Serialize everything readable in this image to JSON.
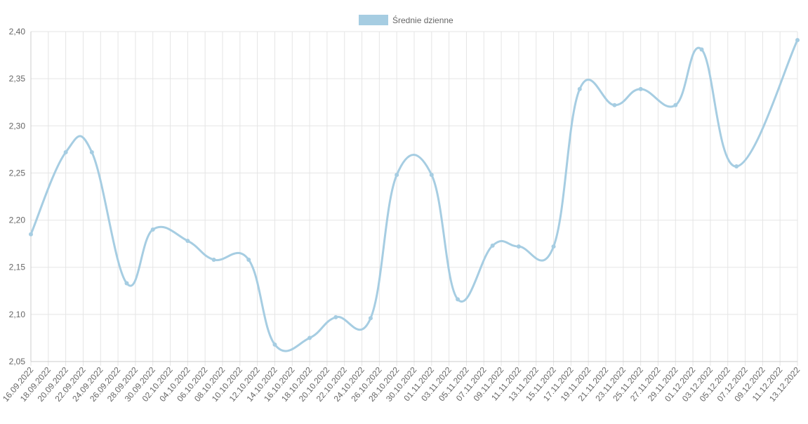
{
  "chart_data": {
    "type": "line",
    "x": [
      "16.09.2022",
      "20.09.2022",
      "23.09.2022",
      "27.09.2022",
      "30.09.2022",
      "04.10.2022",
      "07.10.2022",
      "11.10.2022",
      "14.10.2022",
      "18.10.2022",
      "21.10.2022",
      "25.10.2022",
      "28.10.2022",
      "01.11.2022",
      "04.11.2022",
      "08.11.2022",
      "11.11.2022",
      "15.11.2022",
      "18.11.2022",
      "22.11.2022",
      "25.11.2022",
      "29.11.2022",
      "02.12.2022",
      "06.12.2022",
      "13.12.2022"
    ],
    "series": [
      {
        "name": "Średnie dzienne",
        "color": "#a6cde2",
        "values": [
          2.185,
          2.272,
          2.272,
          2.133,
          2.19,
          2.178,
          2.158,
          2.158,
          2.068,
          2.075,
          2.097,
          2.096,
          2.248,
          2.248,
          2.116,
          2.173,
          2.172,
          2.172,
          2.339,
          2.322,
          2.339,
          2.322,
          2.381,
          2.257,
          2.391
        ]
      }
    ],
    "xlim": [
      "16.09.2022",
      "13.12.2022"
    ],
    "xticks": [
      "16.09.2022",
      "18.09.2022",
      "20.09.2022",
      "22.09.2022",
      "24.09.2022",
      "26.09.2022",
      "28.09.2022",
      "30.09.2022",
      "02.10.2022",
      "04.10.2022",
      "06.10.2022",
      "08.10.2022",
      "10.10.2022",
      "12.10.2022",
      "14.10.2022",
      "16.10.2022",
      "18.10.2022",
      "20.10.2022",
      "22.10.2022",
      "24.10.2022",
      "26.10.2022",
      "28.10.2022",
      "30.10.2022",
      "01.11.2022",
      "03.11.2022",
      "05.11.2022",
      "07.11.2022",
      "09.11.2022",
      "11.11.2022",
      "13.11.2022",
      "15.11.2022",
      "17.11.2022",
      "19.11.2022",
      "21.11.2022",
      "23.11.2022",
      "25.11.2022",
      "27.11.2022",
      "29.11.2022",
      "01.12.2022",
      "03.12.2022",
      "05.12.2022",
      "07.12.2022",
      "09.12.2022",
      "11.12.2022",
      "13.12.2022"
    ],
    "ylim": [
      2.05,
      2.4
    ],
    "yticks": [
      {
        "value": 2.05,
        "label": "2,05"
      },
      {
        "value": 2.1,
        "label": "2,10"
      },
      {
        "value": 2.15,
        "label": "2,15"
      },
      {
        "value": 2.2,
        "label": "2,20"
      },
      {
        "value": 2.25,
        "label": "2,25"
      },
      {
        "value": 2.3,
        "label": "2,30"
      },
      {
        "value": 2.35,
        "label": "2,35"
      },
      {
        "value": 2.4,
        "label": "2,40"
      }
    ],
    "grid": true,
    "legend": "top"
  }
}
